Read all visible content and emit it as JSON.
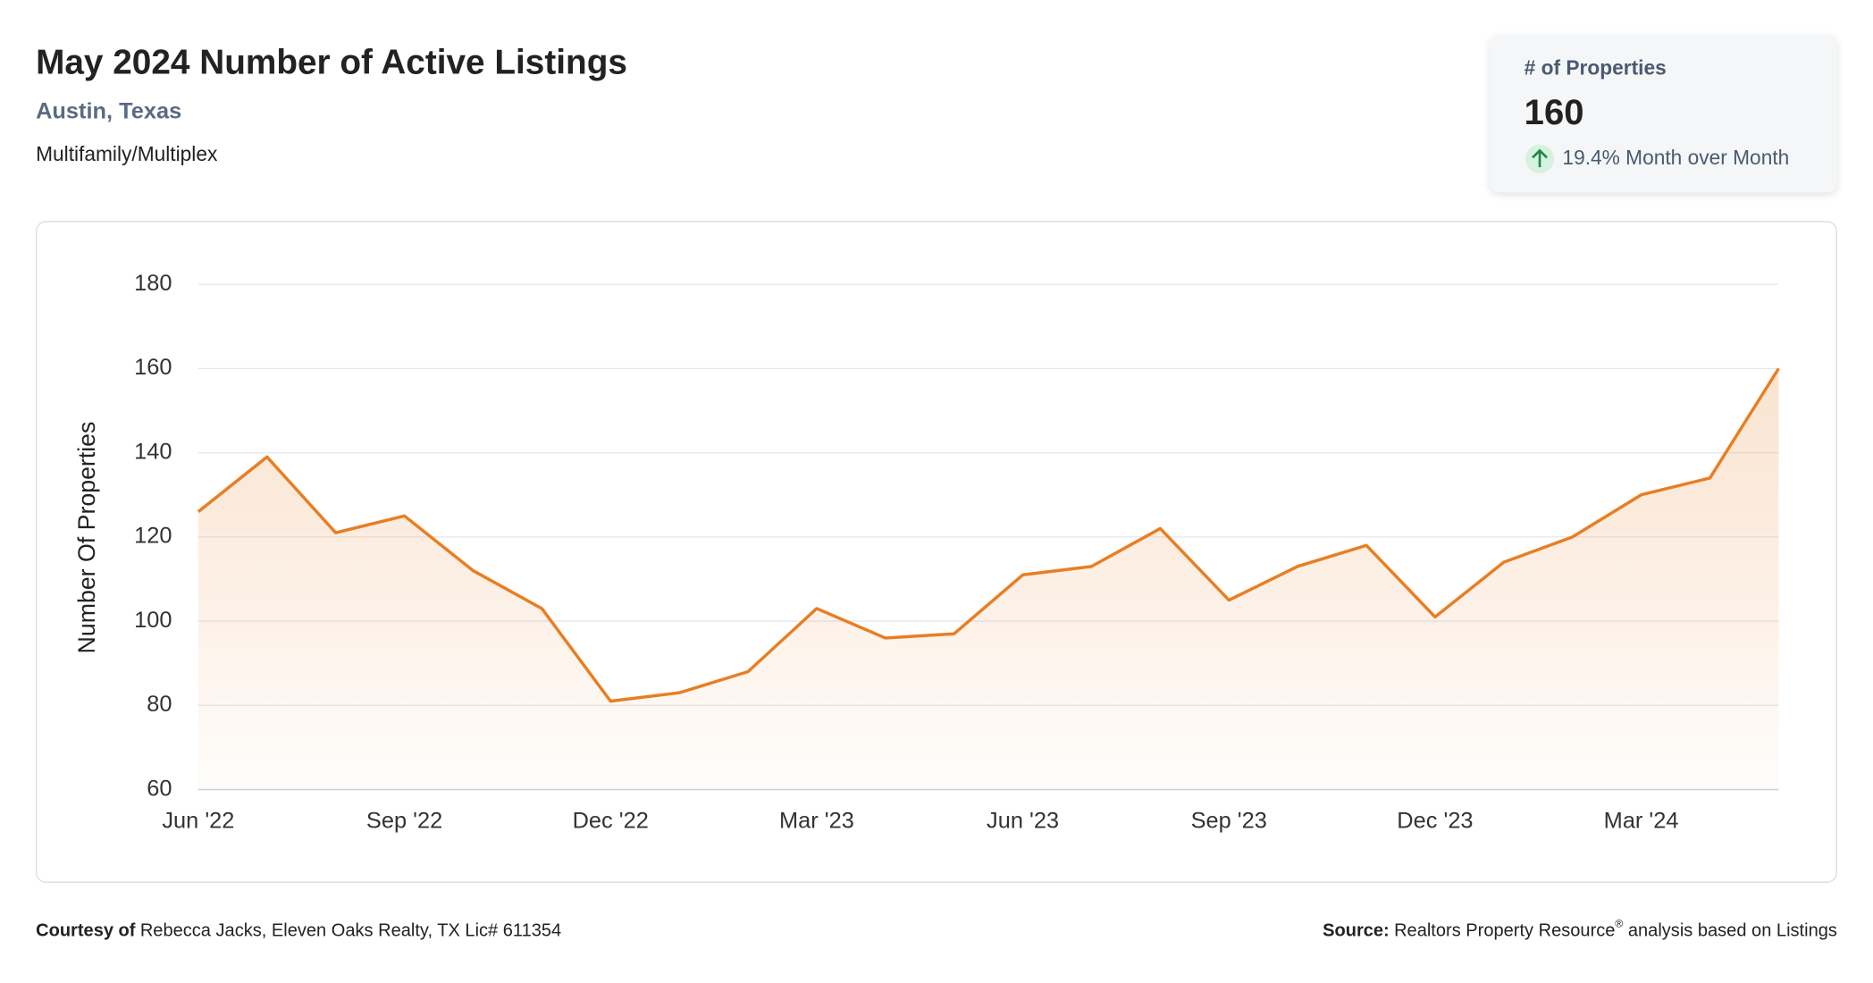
{
  "chart_data": {
    "type": "line",
    "title": "May 2024 Number of Active Listings",
    "subtitle": "Austin, Texas",
    "property_type": "Multifamily/Multiplex",
    "y_label": "Number Of Properties",
    "categories": [
      "Jun '22",
      null,
      null,
      "Sep '22",
      null,
      null,
      "Dec '22",
      null,
      null,
      "Mar '23",
      null,
      null,
      "Jun '23",
      null,
      null,
      "Sep '23",
      null,
      null,
      "Dec '23",
      null,
      null,
      "Mar '24",
      null,
      null
    ],
    "series": [
      {
        "name": "Number Of Properties",
        "color": "#e87e22",
        "values": [
          126,
          139,
          121,
          125,
          112,
          103,
          81,
          83,
          88,
          103,
          96,
          97,
          111,
          113,
          122,
          105,
          113,
          118,
          101,
          114,
          120,
          130,
          134,
          160
        ]
      }
    ],
    "ylim": [
      60,
      180
    ],
    "yticks": [
      60,
      80,
      100,
      120,
      140,
      160,
      180
    ],
    "grid": true
  },
  "kpi": {
    "label": "# of Properties",
    "value": "160",
    "change": "19.4% Month over Month"
  },
  "footer": {
    "courtesy_label": "Courtesy of",
    "courtesy": "Rebecca Jacks, Eleven Oaks Realty, TX Lic# 611354",
    "source_label": "Source:",
    "source": "Realtors Property Resource",
    "source_mark": "®",
    "source_rest": " analysis based on Listings"
  }
}
